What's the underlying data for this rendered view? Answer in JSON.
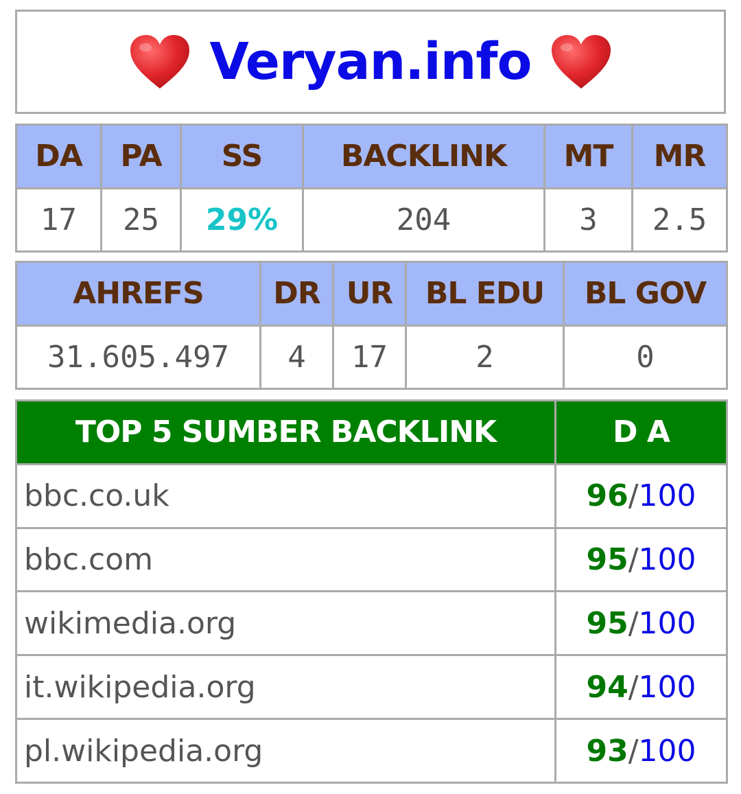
{
  "title": {
    "text": "Veryan.info",
    "left_icon": "heart-icon",
    "right_icon": "heart-icon",
    "heart_color": "#e0252b",
    "text_color": "#0b0be6"
  },
  "metrics_table": {
    "headers": [
      "DA",
      "PA",
      "SS",
      "BACKLINK",
      "MT",
      "MR"
    ],
    "values": [
      "17",
      "25",
      "29%",
      "204",
      "3",
      "2.5"
    ]
  },
  "ahrefs_table": {
    "headers": [
      "AHREFS",
      "DR",
      "UR",
      "BL EDU",
      "BL GOV"
    ],
    "values": [
      "31.605.497",
      "4",
      "17",
      "2",
      "0"
    ]
  },
  "backlinks_table": {
    "header_source": "TOP 5 SUMBER BACKLINK",
    "header_da": "D A",
    "rows": [
      {
        "site": "bbc.co.uk",
        "da": "96",
        "max": "100"
      },
      {
        "site": "bbc.com",
        "da": "95",
        "max": "100"
      },
      {
        "site": "wikimedia.org",
        "da": "95",
        "max": "100"
      },
      {
        "site": "it.wikipedia.org",
        "da": "94",
        "max": "100"
      },
      {
        "site": "pl.wikipedia.org",
        "da": "93",
        "max": "100"
      }
    ],
    "separator": "/"
  },
  "colors": {
    "header_blue": "#a3b8f8",
    "header_green": "#008000",
    "header_text_brown": "#5a2d0c",
    "ss_teal": "#17c4c8"
  }
}
